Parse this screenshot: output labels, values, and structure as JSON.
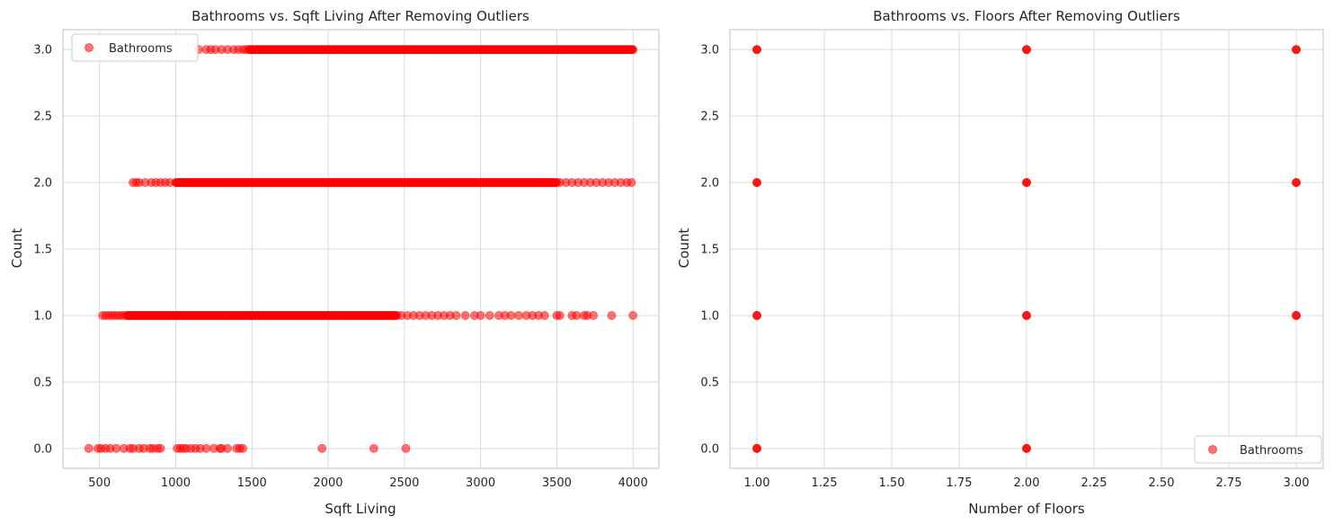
{
  "chart_data": [
    {
      "type": "scatter",
      "title": "Bathrooms vs. Sqft Living After Removing Outliers",
      "xlabel": "Sqft Living",
      "ylabel": "Count",
      "xlim": [
        260,
        4170
      ],
      "ylim": [
        -0.15,
        3.15
      ],
      "xticks": [
        {
          "value": 500,
          "label": "500"
        },
        {
          "value": 1000,
          "label": "1000"
        },
        {
          "value": 1500,
          "label": "1500"
        },
        {
          "value": 2000,
          "label": "2000"
        },
        {
          "value": 2500,
          "label": "2500"
        },
        {
          "value": 3000,
          "label": "3000"
        },
        {
          "value": 3500,
          "label": "3500"
        },
        {
          "value": 4000,
          "label": "4000"
        }
      ],
      "yticks": [
        {
          "value": 0.0,
          "label": "0.0"
        },
        {
          "value": 0.5,
          "label": "0.5"
        },
        {
          "value": 1.0,
          "label": "1.0"
        },
        {
          "value": 1.5,
          "label": "1.5"
        },
        {
          "value": 2.0,
          "label": "2.0"
        },
        {
          "value": 2.5,
          "label": "2.5"
        },
        {
          "value": 3.0,
          "label": "3.0"
        }
      ],
      "grid": true,
      "legend": {
        "position": "upper-left",
        "entries": [
          "Bathrooms"
        ]
      },
      "marker_color": "#ff0000",
      "marker_alpha": 0.55,
      "series": [
        {
          "name": "Bathrooms",
          "bands": [
            {
              "y": 3,
              "dense_from": 1480,
              "dense_to": 4000,
              "sparse": [
                1150,
                1200,
                1230,
                1260,
                1300,
                1340,
                1380,
                1410,
                1440,
                1460
              ]
            },
            {
              "y": 2,
              "dense_from": 1000,
              "dense_to": 3500,
              "sparse": [
                720,
                740,
                760,
                800,
                840,
                870,
                900,
                930,
                960,
                3520,
                3560,
                3600,
                3640,
                3680,
                3720,
                3760,
                3800,
                3840,
                3880,
                3920,
                3960,
                3990
              ]
            },
            {
              "y": 1,
              "dense_from": 680,
              "dense_to": 2450,
              "sparse": [
                520,
                540,
                560,
                580,
                600,
                620,
                640,
                660,
                2480,
                2520,
                2560,
                2600,
                2640,
                2680,
                2720,
                2760,
                2800,
                2840,
                2900,
                2960,
                3000,
                3060,
                3120,
                3160,
                3200,
                3250,
                3300,
                3340,
                3380,
                3420,
                3500,
                3520,
                3600,
                3630,
                3680,
                3700,
                3740,
                3860,
                4000
              ]
            },
            {
              "y": 0,
              "dense_from": null,
              "dense_to": null,
              "sparse": [
                430,
                490,
                510,
                540,
                570,
                610,
                660,
                700,
                720,
                760,
                790,
                830,
                850,
                880,
                900,
                1010,
                1030,
                1050,
                1070,
                1100,
                1130,
                1160,
                1200,
                1250,
                1290,
                1300,
                1340,
                1400,
                1420,
                1440,
                1960,
                2300,
                2510
              ]
            }
          ]
        }
      ]
    },
    {
      "type": "scatter",
      "title": "Bathrooms vs. Floors After Removing Outliers",
      "xlabel": "Number of Floors",
      "ylabel": "Count",
      "xlim": [
        0.9,
        3.1
      ],
      "ylim": [
        -0.15,
        3.15
      ],
      "xticks": [
        {
          "value": 1.0,
          "label": "1.00"
        },
        {
          "value": 1.25,
          "label": "1.25"
        },
        {
          "value": 1.5,
          "label": "1.50"
        },
        {
          "value": 1.75,
          "label": "1.75"
        },
        {
          "value": 2.0,
          "label": "2.00"
        },
        {
          "value": 2.25,
          "label": "2.25"
        },
        {
          "value": 2.5,
          "label": "2.50"
        },
        {
          "value": 2.75,
          "label": "2.75"
        },
        {
          "value": 3.0,
          "label": "3.00"
        }
      ],
      "yticks": [
        {
          "value": 0.0,
          "label": "0.0"
        },
        {
          "value": 0.5,
          "label": "0.5"
        },
        {
          "value": 1.0,
          "label": "1.0"
        },
        {
          "value": 1.5,
          "label": "1.5"
        },
        {
          "value": 2.0,
          "label": "2.0"
        },
        {
          "value": 2.5,
          "label": "2.5"
        },
        {
          "value": 3.0,
          "label": "3.0"
        }
      ],
      "grid": true,
      "legend": {
        "position": "lower-right",
        "entries": [
          "Bathrooms"
        ]
      },
      "marker_color": "#ff0000",
      "marker_alpha": 0.55,
      "series": [
        {
          "name": "Bathrooms",
          "points": [
            {
              "x": 1,
              "y": 0
            },
            {
              "x": 1,
              "y": 1
            },
            {
              "x": 1,
              "y": 2
            },
            {
              "x": 1,
              "y": 3
            },
            {
              "x": 2,
              "y": 0
            },
            {
              "x": 2,
              "y": 1
            },
            {
              "x": 2,
              "y": 2
            },
            {
              "x": 2,
              "y": 3
            },
            {
              "x": 3,
              "y": 1
            },
            {
              "x": 3,
              "y": 2
            },
            {
              "x": 3,
              "y": 3
            }
          ]
        }
      ]
    }
  ]
}
